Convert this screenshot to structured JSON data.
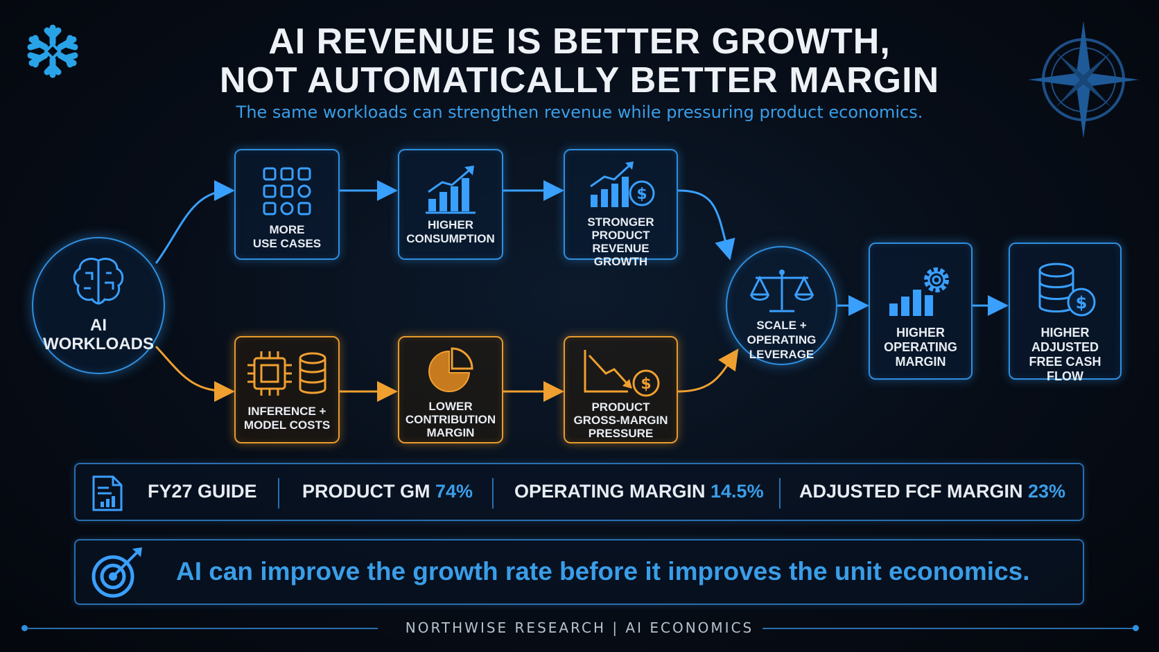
{
  "header": {
    "title_line1": "AI REVENUE IS BETTER GROWTH,",
    "title_line2": "NOT AUTOMATICALLY BETTER MARGIN",
    "subtitle": "The same workloads can strengthen revenue while pressuring product economics."
  },
  "flow": {
    "source": "AI\nWORKLOADS",
    "top_path": [
      "MORE\nUSE CASES",
      "HIGHER\nCONSUMPTION",
      "STRONGER\nPRODUCT\nREVENUE GROWTH"
    ],
    "bottom_path": [
      "INFERENCE +\nMODEL COSTS",
      "LOWER\nCONTRIBUTION\nMARGIN",
      "PRODUCT\nGROSS-MARGIN\nPRESSURE"
    ],
    "merge": "SCALE +\nOPERATING\nLEVERAGE",
    "outcomes": [
      "HIGHER\nOPERATING\nMARGIN",
      "HIGHER\nADJUSTED\nFREE CASH FLOW"
    ]
  },
  "colors": {
    "growth_path": "#2f8fe0",
    "cost_path": "#e89a2c",
    "accent_text": "#3a9ee8"
  },
  "metrics": {
    "label": "FY27 GUIDE",
    "items": [
      {
        "name": "PRODUCT GM",
        "value": "74%"
      },
      {
        "name": "OPERATING MARGIN",
        "value": "14.5%"
      },
      {
        "name": "ADJUSTED FCF MARGIN",
        "value": "23%"
      }
    ]
  },
  "callout": {
    "text": "AI can improve the growth rate before it improves the unit economics."
  },
  "footer": {
    "text": "NORTHWISE RESEARCH  |  AI ECONOMICS"
  },
  "icons": [
    "snowflake-logo",
    "compass-icon",
    "brain-icon",
    "grid-icon",
    "bar-chart-up-icon",
    "chart-dollar-icon",
    "chip-database-icon",
    "pie-chart-icon",
    "declining-chart-dollar-icon",
    "scales-icon",
    "chart-gear-icon",
    "database-dollar-icon",
    "document-chart-icon",
    "target-icon"
  ]
}
